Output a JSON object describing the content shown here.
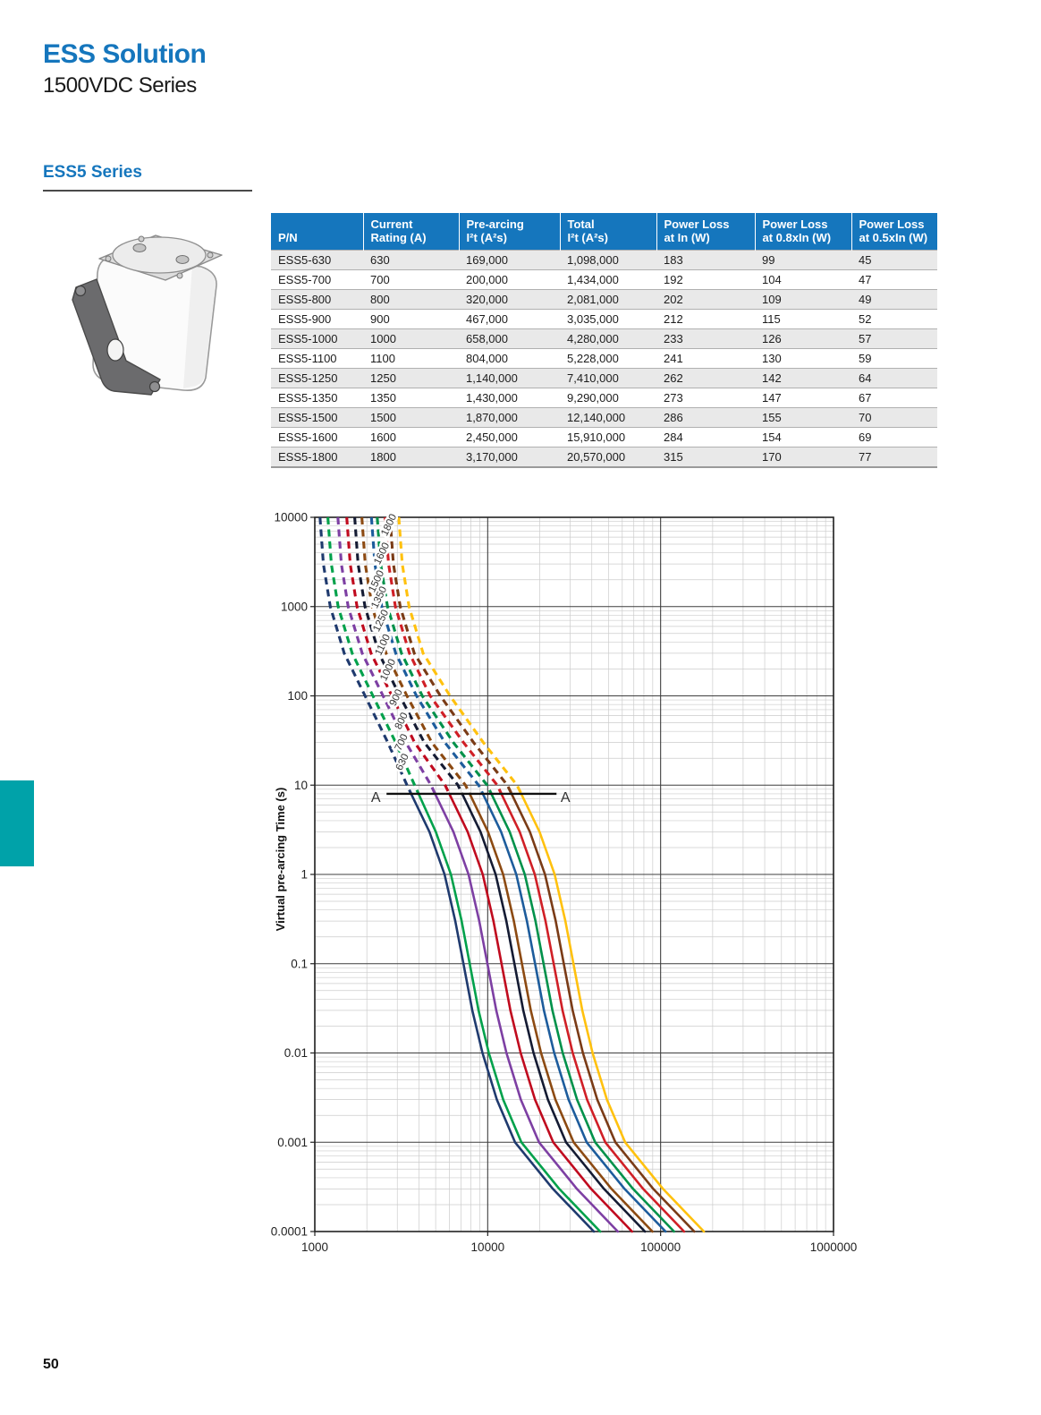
{
  "header": {
    "title": "ESS Solution",
    "subtitle": "1500VDC Series",
    "section": "ESS5 Series"
  },
  "page": {
    "number": "50"
  },
  "colors": {
    "brand_blue": "#1576BD",
    "teal_tab": "#00A2A9",
    "row_alt_bg": "#E9E9E9",
    "grid_major": "#3f3f3f",
    "grid_minor": "#cccccc",
    "marker_line": "#111111"
  },
  "table": {
    "headers": [
      "P/N",
      "Current\nRating (A)",
      "Pre-arcing\nI²t (A²s)",
      "Total\nI²t (A²s)",
      "Power Loss\nat In (W)",
      "Power Loss\nat 0.8xIn (W)",
      "Power Loss\nat 0.5xIn (W)"
    ],
    "rows": [
      [
        "ESS5-630",
        "630",
        "169,000",
        "1,098,000",
        "183",
        "99",
        "45"
      ],
      [
        "ESS5-700",
        "700",
        "200,000",
        "1,434,000",
        "192",
        "104",
        "47"
      ],
      [
        "ESS5-800",
        "800",
        "320,000",
        "2,081,000",
        "202",
        "109",
        "49"
      ],
      [
        "ESS5-900",
        "900",
        "467,000",
        "3,035,000",
        "212",
        "115",
        "52"
      ],
      [
        "ESS5-1000",
        "1000",
        "658,000",
        "4,280,000",
        "233",
        "126",
        "57"
      ],
      [
        "ESS5-1100",
        "1100",
        "804,000",
        "5,228,000",
        "241",
        "130",
        "59"
      ],
      [
        "ESS5-1250",
        "1250",
        "1,140,000",
        "7,410,000",
        "262",
        "142",
        "64"
      ],
      [
        "ESS5-1350",
        "1350",
        "1,430,000",
        "9,290,000",
        "273",
        "147",
        "67"
      ],
      [
        "ESS5-1500",
        "1500",
        "1,870,000",
        "12,140,000",
        "286",
        "155",
        "70"
      ],
      [
        "ESS5-1600",
        "1600",
        "2,450,000",
        "15,910,000",
        "284",
        "154",
        "69"
      ],
      [
        "ESS5-1800",
        "1800",
        "3,170,000",
        "20,570,000",
        "315",
        "170",
        "77"
      ]
    ]
  },
  "chart_data": {
    "type": "line",
    "title": "",
    "xlabel": "",
    "ylabel": "Virtual pre-arcing Time (s)",
    "x_scale": "log",
    "y_scale": "log",
    "x_range": [
      1000,
      1000000
    ],
    "y_range": [
      0.0001,
      10000
    ],
    "x_ticks": [
      "1000",
      "10000",
      "100000",
      "1000000"
    ],
    "y_ticks": [
      "10000",
      "1000",
      "100",
      "10",
      "1",
      "0.1",
      "0.01",
      "0.001",
      "0.0001"
    ],
    "grid": "log major+minor",
    "legend_position": "labels-on-curves",
    "dashed_above_seconds": 8,
    "marker": {
      "label": "A",
      "t": 8,
      "i_from": 2600,
      "i_to": 25000
    },
    "model": {
      "t_grid": [
        10000,
        3000,
        1000,
        300,
        100,
        30,
        10,
        3,
        1,
        0.3,
        0.1,
        0.03,
        0.01,
        0.003,
        0.001,
        0.0003,
        0.0001
      ],
      "long_mult": [
        1.7,
        1.78,
        1.95,
        2.35,
        3.1,
        4.2,
        5.4,
        6.6,
        7.8,
        9.0,
        10.2,
        11.5,
        13.0,
        15.0,
        18.0,
        22.0,
        28.0
      ],
      "short_mult": [
        0,
        0,
        0,
        0,
        3.4,
        5.3,
        8.3,
        11.2,
        13.7,
        15.8,
        17.6,
        19.8,
        22.7,
        27.5,
        35.0,
        58.0,
        100.0
      ]
    },
    "series": [
      {
        "label": "630",
        "rating": 630,
        "prearc_i2t": 169000,
        "color": "#1F3A6E"
      },
      {
        "label": "700",
        "rating": 700,
        "prearc_i2t": 200000,
        "color": "#00A14B"
      },
      {
        "label": "800",
        "rating": 800,
        "prearc_i2t": 320000,
        "color": "#7D3FA3"
      },
      {
        "label": "900",
        "rating": 900,
        "prearc_i2t": 467000,
        "color": "#C00A1E"
      },
      {
        "label": "1000",
        "rating": 1000,
        "prearc_i2t": 658000,
        "color": "#141B33"
      },
      {
        "label": "1100",
        "rating": 1100,
        "prearc_i2t": 804000,
        "color": "#8C4A12"
      },
      {
        "label": "1250",
        "rating": 1250,
        "prearc_i2t": 1140000,
        "color": "#1D5C9C"
      },
      {
        "label": "1350",
        "rating": 1350,
        "prearc_i2t": 1430000,
        "color": "#00914A"
      },
      {
        "label": "1500",
        "rating": 1500,
        "prearc_i2t": 1870000,
        "color": "#D01F26"
      },
      {
        "label": "1600",
        "rating": 1600,
        "prearc_i2t": 2450000,
        "color": "#7A3B16"
      },
      {
        "label": "1800",
        "rating": 1800,
        "prearc_i2t": 3170000,
        "color": "#FFC10E"
      }
    ]
  }
}
